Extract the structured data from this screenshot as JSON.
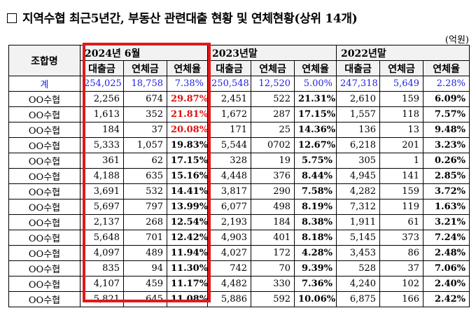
{
  "title": "지역수협 최근5년간, 부동산 관련대출 현황 및 연체현황(상위 14개)",
  "unit": "(억원)",
  "header": {
    "org_label": "조합명",
    "groups": [
      "2024년 6월",
      "2023년말",
      "2022년말"
    ],
    "subs": [
      "대출금",
      "연체금",
      "연체율"
    ]
  },
  "total": {
    "name": "계",
    "cells": [
      "254,025",
      "18,758",
      "7.38%",
      "250,548",
      "12,520",
      "5.00%",
      "247,318",
      "5,649",
      "2.28%"
    ]
  },
  "rows": [
    {
      "name": "OO수협",
      "cells": [
        "2,256",
        "674",
        "29.87%",
        "2,451",
        "522",
        "21.31%",
        "2,610",
        "159",
        "6.09%"
      ]
    },
    {
      "name": "OO수협",
      "cells": [
        "1,613",
        "352",
        "21.81%",
        "1,672",
        "287",
        "17.15%",
        "1,557",
        "118",
        "7.57%"
      ]
    },
    {
      "name": "OO수협",
      "cells": [
        "184",
        "37",
        "20.08%",
        "171",
        "25",
        "14.36%",
        "136",
        "13",
        "9.48%"
      ]
    },
    {
      "name": "OO수협",
      "cells": [
        "5,333",
        "1,057",
        "19.83%",
        "5,544",
        "0702",
        "12.67%",
        "6,218",
        "201",
        "3.23%"
      ]
    },
    {
      "name": "OO수협",
      "cells": [
        "361",
        "62",
        "17.15%",
        "328",
        "19",
        "5.75%",
        "305",
        "1",
        "0.26%"
      ]
    },
    {
      "name": "OO수협",
      "cells": [
        "4,188",
        "635",
        "15.16%",
        "4,448",
        "376",
        "8.44%",
        "4,945",
        "141",
        "2.85%"
      ]
    },
    {
      "name": "OO수협",
      "cells": [
        "3,691",
        "532",
        "14.41%",
        "3,817",
        "290",
        "7.58%",
        "4,282",
        "159",
        "3.72%"
      ]
    },
    {
      "name": "OO수협",
      "cells": [
        "5,697",
        "797",
        "13.99%",
        "6,077",
        "498",
        "8.19%",
        "7,312",
        "119",
        "1.63%"
      ]
    },
    {
      "name": "OO수협",
      "cells": [
        "2,137",
        "268",
        "12.54%",
        "2,193",
        "184",
        "8.38%",
        "1,911",
        "61",
        "3.21%"
      ]
    },
    {
      "name": "OO수협",
      "cells": [
        "5,648",
        "701",
        "12.42%",
        "4,903",
        "401",
        "8.18%",
        "5,145",
        "373",
        "7.24%"
      ]
    },
    {
      "name": "OO수협",
      "cells": [
        "4,097",
        "489",
        "11.94%",
        "4,027",
        "172",
        "4.28%",
        "3,453",
        "86",
        "2.48%"
      ]
    },
    {
      "name": "OO수협",
      "cells": [
        "835",
        "94",
        "11.30%",
        "742",
        "70",
        "9.39%",
        "528",
        "37",
        "7.06%"
      ]
    },
    {
      "name": "OO수협",
      "cells": [
        "4,107",
        "459",
        "11.17%",
        "4,482",
        "330",
        "7.36%",
        "4,240",
        "102",
        "2.40%"
      ]
    },
    {
      "name": "OO수협",
      "cells": [
        "5,821",
        "645",
        "11.08%",
        "5,886",
        "592",
        "10.06%",
        "6,875",
        "166",
        "2.42%"
      ]
    }
  ],
  "colors": {
    "highlight": "#e0191a",
    "total_text": "#1f1fe6",
    "red_text": "#e01010"
  }
}
